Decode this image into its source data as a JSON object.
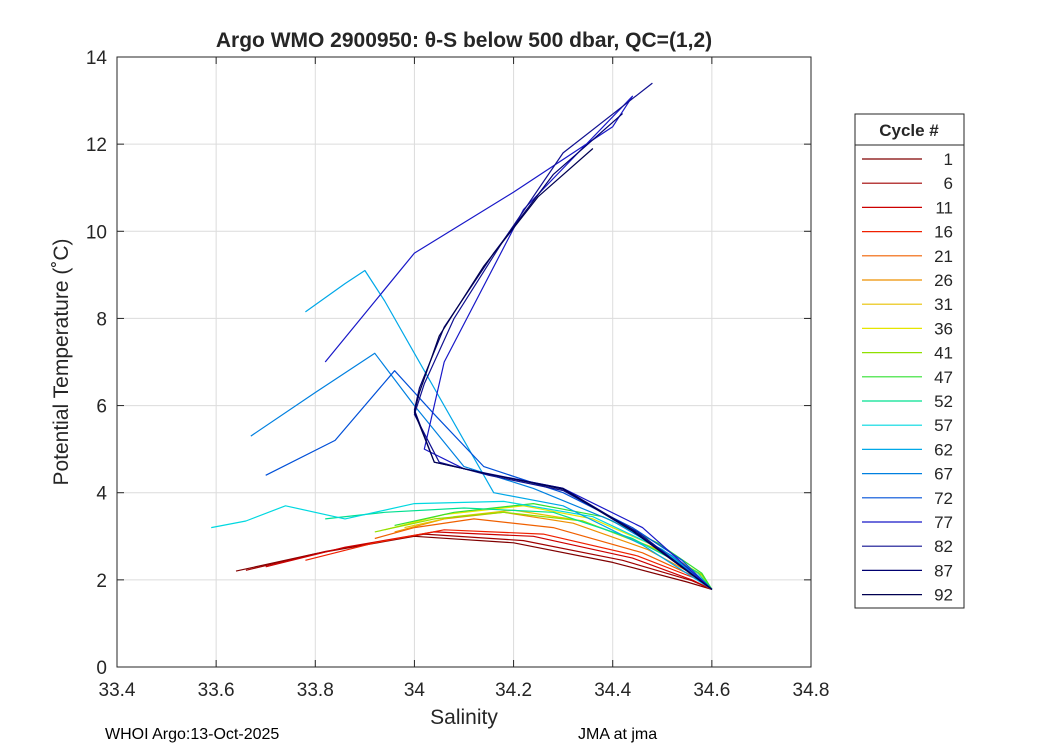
{
  "chart_data": {
    "type": "line",
    "title": "Argo WMO 2900950: θ-S below 500 dbar,  QC=(1,2)",
    "xlabel": "Salinity",
    "ylabel": "Potential Temperature (˚C)",
    "xlim": [
      33.4,
      34.8
    ],
    "ylim": [
      0,
      14
    ],
    "xticks": [
      "33.4",
      "33.6",
      "33.8",
      "34",
      "34.2",
      "34.4",
      "34.6",
      "34.8"
    ],
    "yticks": [
      "0",
      "2",
      "4",
      "6",
      "8",
      "10",
      "12",
      "14"
    ],
    "grid": true,
    "legend_title": "Cycle #",
    "legend_position": "right",
    "series": [
      {
        "name": "1",
        "color": "#800000",
        "x": [
          33.64,
          33.8,
          34.0,
          34.2,
          34.4,
          34.55,
          34.6
        ],
        "y": [
          2.2,
          2.6,
          3.0,
          2.85,
          2.4,
          1.95,
          1.78
        ]
      },
      {
        "name": "6",
        "color": "#a00000",
        "x": [
          33.66,
          33.82,
          34.02,
          34.22,
          34.42,
          34.56,
          34.6
        ],
        "y": [
          2.22,
          2.65,
          3.05,
          2.9,
          2.45,
          1.98,
          1.78
        ]
      },
      {
        "name": "11",
        "color": "#cc0000",
        "x": [
          33.7,
          33.86,
          34.04,
          34.24,
          34.44,
          34.56,
          34.6
        ],
        "y": [
          2.3,
          2.75,
          3.1,
          3.0,
          2.5,
          2.0,
          1.78
        ]
      },
      {
        "name": "16",
        "color": "#f02000",
        "x": [
          33.78,
          33.92,
          34.06,
          34.26,
          34.45,
          34.57,
          34.6
        ],
        "y": [
          2.45,
          2.85,
          3.15,
          3.05,
          2.55,
          2.02,
          1.78
        ]
      },
      {
        "name": "21",
        "color": "#f06000",
        "x": [
          33.92,
          34.0,
          34.12,
          34.28,
          34.46,
          34.57,
          34.6
        ],
        "y": [
          2.95,
          3.2,
          3.4,
          3.2,
          2.62,
          2.05,
          1.78
        ]
      },
      {
        "name": "26",
        "color": "#ee9000",
        "x": [
          33.96,
          34.06,
          34.18,
          34.32,
          34.47,
          34.57,
          34.6
        ],
        "y": [
          3.1,
          3.4,
          3.55,
          3.3,
          2.7,
          2.08,
          1.78
        ]
      },
      {
        "name": "31",
        "color": "#e8c000",
        "x": [
          33.98,
          34.08,
          34.2,
          34.34,
          34.48,
          34.58,
          34.6
        ],
        "y": [
          3.2,
          3.45,
          3.6,
          3.35,
          2.75,
          2.1,
          1.78
        ]
      },
      {
        "name": "36",
        "color": "#e6e600",
        "x": [
          33.94,
          34.06,
          34.22,
          34.36,
          34.48,
          34.58,
          34.6
        ],
        "y": [
          3.15,
          3.5,
          3.7,
          3.4,
          2.8,
          2.12,
          1.78
        ]
      },
      {
        "name": "41",
        "color": "#90e000",
        "x": [
          33.92,
          34.04,
          34.18,
          34.34,
          34.47,
          34.58,
          34.6
        ],
        "y": [
          3.1,
          3.4,
          3.55,
          3.35,
          2.78,
          2.12,
          1.78
        ]
      },
      {
        "name": "47",
        "color": "#30e030",
        "x": [
          33.96,
          34.08,
          34.24,
          34.38,
          34.49,
          34.58,
          34.6
        ],
        "y": [
          3.25,
          3.55,
          3.75,
          3.45,
          2.85,
          2.15,
          1.78
        ]
      },
      {
        "name": "52",
        "color": "#00e090",
        "x": [
          33.82,
          33.94,
          34.1,
          34.28,
          34.44,
          34.57,
          34.6
        ],
        "y": [
          3.4,
          3.55,
          3.65,
          3.55,
          2.95,
          2.18,
          1.78
        ]
      },
      {
        "name": "57",
        "color": "#00d8e0",
        "x": [
          33.59,
          33.66,
          33.74,
          33.86,
          34.0,
          34.18,
          34.36,
          34.5,
          34.6
        ],
        "y": [
          3.2,
          3.35,
          3.7,
          3.4,
          3.75,
          3.8,
          3.45,
          2.7,
          1.78
        ]
      },
      {
        "name": "62",
        "color": "#00a8e8",
        "x": [
          33.78,
          33.86,
          33.9,
          33.94,
          34.0,
          34.16,
          34.3,
          34.46,
          34.6
        ],
        "y": [
          8.15,
          8.8,
          9.1,
          8.4,
          7.2,
          4.0,
          3.7,
          2.8,
          1.78
        ]
      },
      {
        "name": "67",
        "color": "#0080e0",
        "x": [
          33.67,
          33.8,
          33.92,
          34.0,
          34.1,
          34.24,
          34.4,
          34.52,
          34.6
        ],
        "y": [
          5.3,
          6.3,
          7.2,
          6.0,
          4.6,
          4.1,
          3.35,
          2.55,
          1.78
        ]
      },
      {
        "name": "72",
        "color": "#0050d8",
        "x": [
          33.7,
          33.84,
          33.96,
          34.04,
          34.14,
          34.3,
          34.44,
          34.54,
          34.6
        ],
        "y": [
          4.4,
          5.2,
          6.8,
          5.8,
          4.6,
          4.0,
          3.2,
          2.45,
          1.78
        ]
      },
      {
        "name": "77",
        "color": "#1818c8",
        "x": [
          33.82,
          34.0,
          34.2,
          34.4,
          34.44,
          34.22,
          34.06,
          34.02,
          34.1,
          34.3,
          34.46,
          34.6
        ],
        "y": [
          7.0,
          9.5,
          10.9,
          12.4,
          13.1,
          10.5,
          7.0,
          5.0,
          4.55,
          4.1,
          3.2,
          1.78
        ]
      },
      {
        "name": "82",
        "color": "#101090",
        "x": [
          34.48,
          34.3,
          34.18,
          34.08,
          34.02,
          34.0,
          34.05,
          34.15,
          34.3,
          34.45,
          34.6
        ],
        "y": [
          13.4,
          11.8,
          9.8,
          8.0,
          6.5,
          5.8,
          4.7,
          4.4,
          4.05,
          3.1,
          1.78
        ]
      },
      {
        "name": "87",
        "color": "#000070",
        "x": [
          34.42,
          34.28,
          34.16,
          34.06,
          34.01,
          34.0,
          34.04,
          34.14,
          34.3,
          34.44,
          34.6
        ],
        "y": [
          12.7,
          11.3,
          9.5,
          7.8,
          6.4,
          5.9,
          4.7,
          4.45,
          4.1,
          3.15,
          1.78
        ]
      },
      {
        "name": "92",
        "color": "#000050",
        "x": [
          34.36,
          34.25,
          34.14,
          34.05,
          34.01,
          34.0,
          34.04,
          34.14,
          34.3,
          34.44,
          34.6
        ],
        "y": [
          11.9,
          10.8,
          9.2,
          7.6,
          6.3,
          5.85,
          4.7,
          4.45,
          4.08,
          3.12,
          1.78
        ]
      }
    ]
  },
  "footer": {
    "left": "WHOI Argo:13-Oct-2025",
    "right": "JMA at jma"
  }
}
